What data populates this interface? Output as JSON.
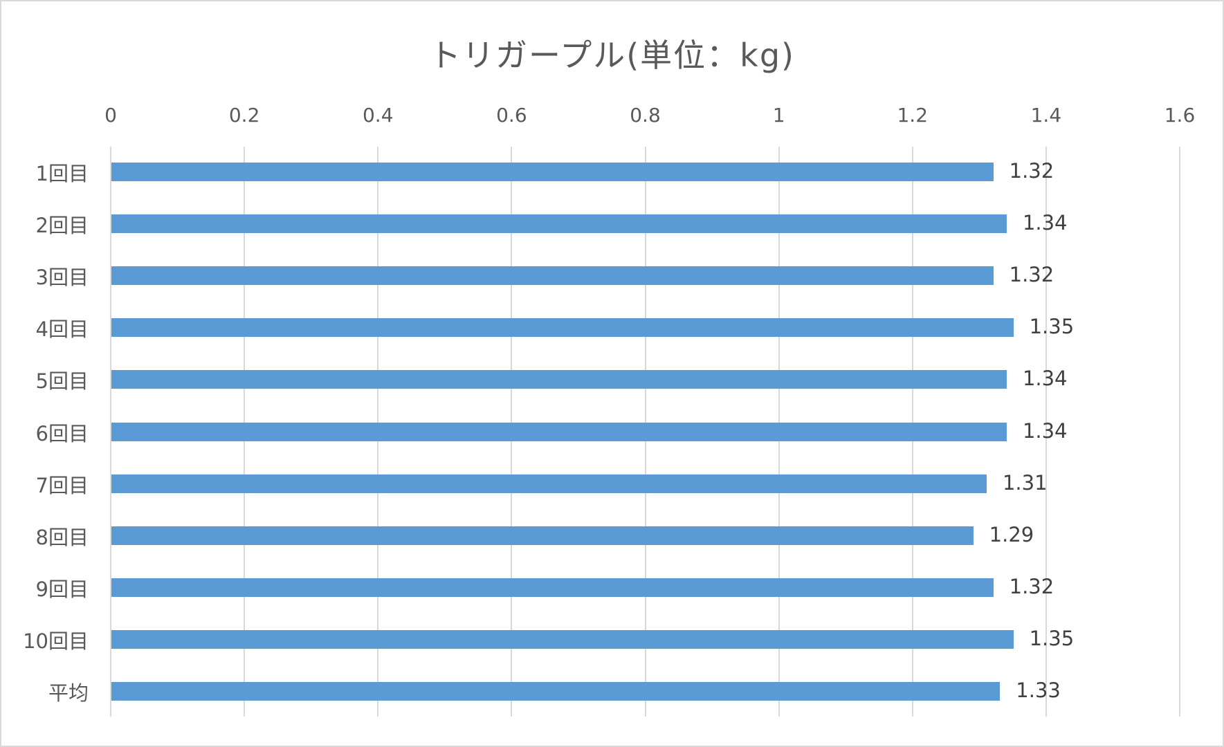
{
  "chart_data": {
    "type": "bar",
    "orientation": "horizontal",
    "title": "トリガープル(単位：kg)",
    "xlabel": "",
    "ylabel": "",
    "categories": [
      "1回目",
      "2回目",
      "3回目",
      "4回目",
      "5回目",
      "6回目",
      "7回目",
      "8回目",
      "9回目",
      "10回目",
      "平均"
    ],
    "values": [
      1.32,
      1.34,
      1.32,
      1.35,
      1.34,
      1.34,
      1.31,
      1.29,
      1.32,
      1.35,
      1.33
    ],
    "value_labels": [
      "1.32",
      "1.34",
      "1.32",
      "1.35",
      "1.34",
      "1.34",
      "1.31",
      "1.29",
      "1.32",
      "1.35",
      "1.33"
    ],
    "xlim": [
      0,
      1.6
    ],
    "x_ticks": [
      "0",
      "0.2",
      "0.4",
      "0.6",
      "0.8",
      "1",
      "1.2",
      "1.4",
      "1.6"
    ],
    "x_axis_position": "top",
    "grid": true,
    "legend": "none",
    "bar_color": "#5b9bd5"
  }
}
